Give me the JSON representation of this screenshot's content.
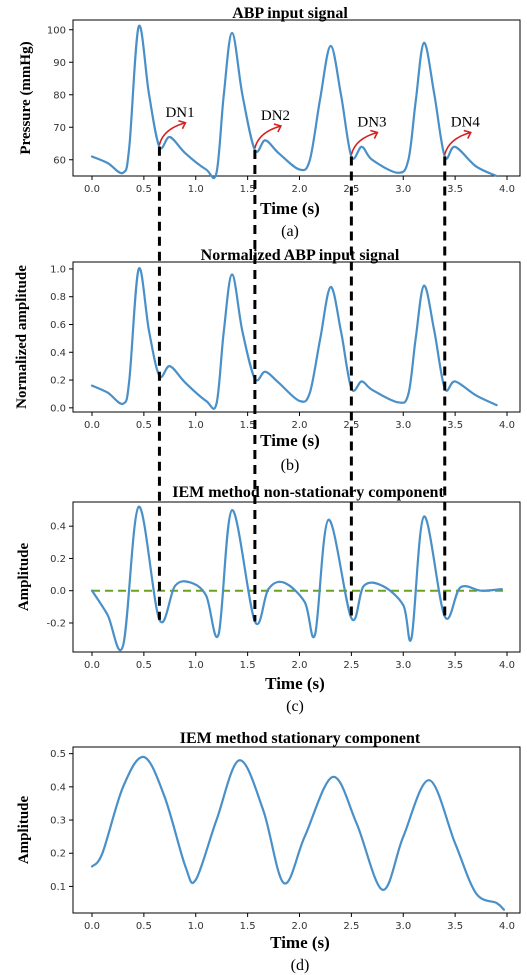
{
  "figure": {
    "panels": [
      {
        "id": "a",
        "title": "ABP input signal",
        "xlabel": "Time (s)",
        "ylabel": "Pressure (mmHg)",
        "sublabel": "(a)",
        "xticks": [
          "0.0",
          "0.5",
          "1.0",
          "1.5",
          "2.0",
          "2.5",
          "3.0",
          "3.5",
          "4.0"
        ],
        "yticks": [
          "60",
          "70",
          "80",
          "90",
          "100"
        ],
        "annotations": [
          "DN1",
          "DN2",
          "DN3",
          "DN4"
        ]
      },
      {
        "id": "b",
        "title": "Normalized ABP input signal",
        "xlabel": "Time (s)",
        "ylabel": "Normalized amplitude",
        "sublabel": "(b)",
        "xticks": [
          "0.0",
          "0.5",
          "1.0",
          "1.5",
          "2.0",
          "2.5",
          "3.0",
          "3.5",
          "4.0"
        ],
        "yticks": [
          "0.0",
          "0.2",
          "0.4",
          "0.6",
          "0.8",
          "1.0"
        ]
      },
      {
        "id": "c",
        "title": "IEM method non-stationary component",
        "xlabel": "Time (s)",
        "ylabel": "Amplitude",
        "sublabel": "(c)",
        "xticks": [
          "0.0",
          "0.5",
          "1.0",
          "1.5",
          "2.0",
          "2.5",
          "3.0",
          "3.5",
          "4.0"
        ],
        "yticks": [
          "-0.2",
          "0.0",
          "0.2",
          "0.4"
        ]
      },
      {
        "id": "d",
        "title": "IEM method stationary component",
        "xlabel": "Time (s)",
        "ylabel": "Amplitude",
        "sublabel": "(d)",
        "xticks": [
          "0.0",
          "0.5",
          "1.0",
          "1.5",
          "2.0",
          "2.5",
          "3.0",
          "3.5",
          "4.0"
        ],
        "yticks": [
          "0.1",
          "0.2",
          "0.3",
          "0.4",
          "0.5"
        ]
      }
    ],
    "colors": {
      "series": "#4a90c8",
      "zero_line": "#6aa121",
      "arrows": "#d62020",
      "dashed_markers": "#000000"
    }
  },
  "chart_data": [
    {
      "type": "line",
      "title": "ABP input signal",
      "xlabel": "Time (s)",
      "ylabel": "Pressure (mmHg)",
      "xlim": [
        0,
        4
      ],
      "ylim": [
        55,
        103
      ],
      "x": [
        0.0,
        0.15,
        0.3,
        0.36,
        0.45,
        0.55,
        0.65,
        0.75,
        0.9,
        1.1,
        1.2,
        1.27,
        1.35,
        1.45,
        1.57,
        1.67,
        1.8,
        2.0,
        2.1,
        2.2,
        2.3,
        2.4,
        2.5,
        2.6,
        2.7,
        2.95,
        3.05,
        3.12,
        3.2,
        3.3,
        3.4,
        3.5,
        3.7,
        3.9
      ],
      "y": [
        61,
        59,
        56,
        64,
        101,
        80,
        64,
        67,
        62,
        57,
        56,
        80,
        99,
        80,
        63,
        66,
        62,
        57,
        60,
        79,
        95,
        80,
        61,
        64,
        60,
        56,
        60,
        78,
        96,
        80,
        61,
        64,
        58,
        55
      ],
      "annotations": [
        "DN1",
        "DN2",
        "DN3",
        "DN4"
      ],
      "dicrotic_notch_times": [
        0.65,
        1.57,
        2.5,
        3.4
      ]
    },
    {
      "type": "line",
      "title": "Normalized ABP input signal",
      "xlabel": "Time (s)",
      "ylabel": "Normalized amplitude",
      "xlim": [
        0,
        4
      ],
      "ylim": [
        -0.03,
        1.05
      ],
      "x": [
        0.0,
        0.15,
        0.3,
        0.36,
        0.45,
        0.55,
        0.65,
        0.75,
        0.9,
        1.1,
        1.2,
        1.27,
        1.35,
        1.45,
        1.57,
        1.67,
        1.8,
        2.0,
        2.1,
        2.2,
        2.3,
        2.4,
        2.5,
        2.6,
        2.7,
        2.95,
        3.05,
        3.12,
        3.2,
        3.3,
        3.4,
        3.5,
        3.7,
        3.9
      ],
      "y": [
        0.16,
        0.11,
        0.03,
        0.2,
        1.0,
        0.55,
        0.23,
        0.3,
        0.18,
        0.05,
        0.03,
        0.55,
        0.96,
        0.55,
        0.21,
        0.26,
        0.18,
        0.05,
        0.11,
        0.5,
        0.87,
        0.55,
        0.14,
        0.19,
        0.13,
        0.04,
        0.1,
        0.5,
        0.88,
        0.55,
        0.14,
        0.19,
        0.09,
        0.02
      ]
    },
    {
      "type": "line",
      "title": "IEM method non-stationary component",
      "xlabel": "Time (s)",
      "ylabel": "Amplitude",
      "xlim": [
        0,
        4
      ],
      "ylim": [
        -0.38,
        0.55
      ],
      "x": [
        0.0,
        0.15,
        0.3,
        0.45,
        0.65,
        0.8,
        0.95,
        1.1,
        1.22,
        1.35,
        1.57,
        1.7,
        1.85,
        2.05,
        2.15,
        2.28,
        2.5,
        2.62,
        2.8,
        3.0,
        3.08,
        3.2,
        3.4,
        3.55,
        3.75,
        3.95
      ],
      "y": [
        0.0,
        -0.15,
        -0.34,
        0.52,
        -0.18,
        0.03,
        0.05,
        -0.03,
        -0.27,
        0.5,
        -0.19,
        0.01,
        0.05,
        -0.07,
        -0.27,
        0.44,
        -0.17,
        0.03,
        0.03,
        -0.09,
        -0.29,
        0.46,
        -0.16,
        0.02,
        0.0,
        0.01
      ],
      "reference_line": 0.0,
      "dicrotic_notch_times": [
        0.65,
        1.57,
        2.5,
        3.4
      ]
    },
    {
      "type": "line",
      "title": "IEM method stationary component",
      "xlabel": "Time (s)",
      "ylabel": "Amplitude",
      "xlim": [
        0,
        4
      ],
      "ylim": [
        0.02,
        0.52
      ],
      "x": [
        0.0,
        0.1,
        0.3,
        0.5,
        0.7,
        0.9,
        1.0,
        1.2,
        1.42,
        1.65,
        1.85,
        2.05,
        2.32,
        2.55,
        2.8,
        3.0,
        3.25,
        3.5,
        3.7,
        3.9,
        3.97
      ],
      "y": [
        0.16,
        0.2,
        0.4,
        0.49,
        0.37,
        0.16,
        0.12,
        0.3,
        0.48,
        0.33,
        0.11,
        0.25,
        0.43,
        0.29,
        0.09,
        0.25,
        0.42,
        0.23,
        0.08,
        0.05,
        0.03
      ]
    }
  ]
}
